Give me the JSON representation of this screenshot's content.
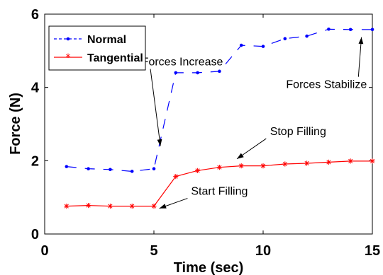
{
  "chart_data": {
    "type": "line",
    "xlabel": "Time (sec)",
    "ylabel": "Force (N)",
    "xlim": [
      0,
      15
    ],
    "ylim": [
      0,
      6
    ],
    "xticks": [
      0,
      5,
      10,
      15
    ],
    "yticks": [
      0,
      2,
      4,
      6
    ],
    "grid": false,
    "legend_position": "top-left",
    "series": [
      {
        "name": "Normal",
        "color": "#0000ff",
        "line_style": "dashed",
        "marker": "dot",
        "x": [
          1,
          2,
          3,
          4,
          5,
          6,
          7,
          8,
          9,
          10,
          11,
          12,
          13,
          14,
          15
        ],
        "y": [
          1.84,
          1.78,
          1.76,
          1.71,
          1.78,
          4.4,
          4.4,
          4.44,
          5.15,
          5.12,
          5.33,
          5.4,
          5.59,
          5.58,
          5.58
        ]
      },
      {
        "name": "Tangential",
        "color": "#ff0000",
        "line_style": "solid",
        "marker": "star",
        "x": [
          1,
          2,
          3,
          4,
          5,
          6,
          7,
          8,
          9,
          10,
          11,
          12,
          13,
          14,
          15
        ],
        "y": [
          0.76,
          0.78,
          0.76,
          0.76,
          0.76,
          1.57,
          1.73,
          1.82,
          1.86,
          1.86,
          1.91,
          1.93,
          1.96,
          1.99,
          1.99
        ]
      }
    ],
    "annotations": [
      {
        "text": "Forces Stabilize",
        "x": 12.9,
        "y": 3.98,
        "arrow_to": [
          14.5,
          5.37
        ]
      },
      {
        "text": "Forces Increase",
        "x": 6.3,
        "y": 4.6,
        "arrow_to": [
          5.3,
          2.4
        ]
      },
      {
        "text": "Stop Filling",
        "x": 11.6,
        "y": 2.7,
        "arrow_to": [
          8.8,
          2.05
        ]
      },
      {
        "text": "Start Filling",
        "x": 8.0,
        "y": 1.07,
        "arrow_to": [
          5.25,
          0.7
        ]
      }
    ]
  }
}
